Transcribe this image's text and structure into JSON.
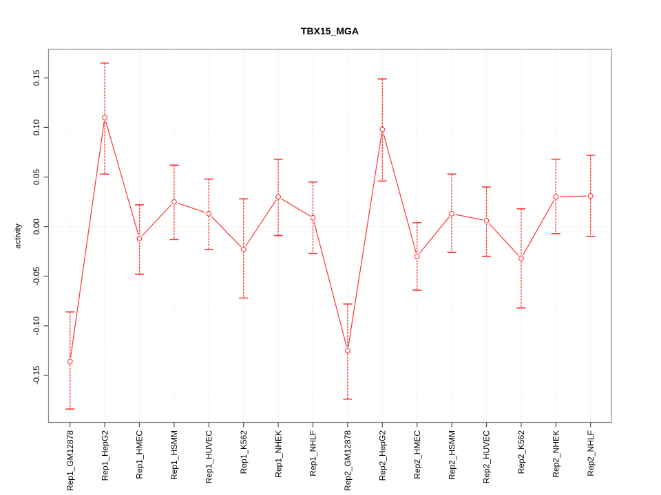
{
  "figure": {
    "background": "#ffffff"
  },
  "chart_data": {
    "type": "line",
    "title": "TBX15_MGA",
    "ylabel": "activity",
    "categories": [
      "Rep1_GM12878",
      "Rep1_HepG2",
      "Rep1_HMEC",
      "Rep1_HSMM",
      "Rep1_HUVEC",
      "Rep1_K562",
      "Rep1_NHEK",
      "Rep1_NHLF",
      "Rep2_GM12878",
      "Rep2_HepG2",
      "Rep2_HMEC",
      "Rep2_HSMM",
      "Rep2_HUVEC",
      "Rep2_K562",
      "Rep2_NHEK",
      "Rep2_NHLF"
    ],
    "series": [
      {
        "name": "activity",
        "values": [
          -0.136,
          0.11,
          -0.012,
          0.025,
          0.013,
          -0.023,
          0.03,
          0.009,
          -0.125,
          0.098,
          -0.03,
          0.013,
          0.006,
          -0.032,
          0.03,
          0.031
        ]
      }
    ],
    "error_bars": {
      "lower": [
        -0.184,
        0.053,
        -0.048,
        -0.013,
        -0.023,
        -0.072,
        -0.009,
        -0.027,
        -0.174,
        0.046,
        -0.064,
        -0.026,
        -0.03,
        -0.082,
        -0.007,
        -0.01
      ],
      "upper": [
        -0.086,
        0.165,
        0.022,
        0.062,
        0.048,
        0.028,
        0.068,
        0.045,
        -0.078,
        0.149,
        0.004,
        0.053,
        0.04,
        0.018,
        0.068,
        0.072
      ]
    },
    "yticks": [
      -0.15,
      -0.1,
      -0.05,
      0.0,
      0.05,
      0.1,
      0.15
    ],
    "ytick_labels": [
      "-0.15",
      "-0.10",
      "-0.05",
      "0.00",
      "0.05",
      "0.10",
      "0.15"
    ],
    "ylim": [
      -0.1975,
      0.179
    ],
    "grid": "dotted vertical line at each category; dotted horizontal line at y=0",
    "legend": "none",
    "point_style": "open-circle",
    "colors": {
      "series": "#ff3333",
      "grid": "#d6d6d6",
      "box": "#8a8a8a",
      "tick": "#4d4d4d",
      "text": "#000000",
      "background": "#ffffff"
    }
  }
}
